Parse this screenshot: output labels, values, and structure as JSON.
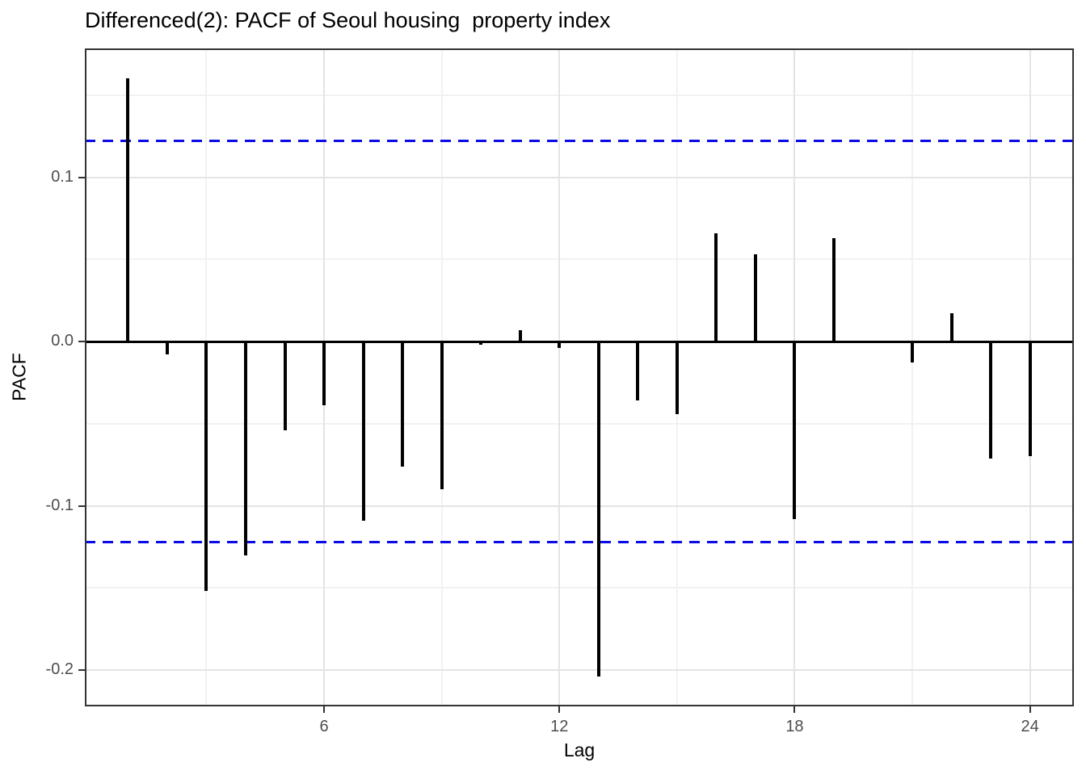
{
  "title": "Differenced(2): PACF of Seoul housing  property index",
  "chart_data": {
    "type": "bar",
    "subtype": "pacf-stick-plot",
    "title": "Differenced(2): PACF of Seoul housing  property index",
    "xlabel": "Lag",
    "ylabel": "PACF",
    "x": [
      1,
      2,
      3,
      4,
      5,
      6,
      7,
      8,
      9,
      10,
      11,
      12,
      13,
      14,
      15,
      16,
      17,
      18,
      19,
      20,
      21,
      22,
      23,
      24
    ],
    "values": [
      0.16,
      -0.008,
      -0.152,
      -0.13,
      -0.054,
      -0.039,
      -0.109,
      -0.076,
      -0.09,
      -0.002,
      0.007,
      -0.004,
      -0.204,
      -0.036,
      -0.044,
      0.066,
      0.053,
      -0.108,
      0.063,
      0.0,
      -0.013,
      0.017,
      -0.071,
      -0.07
    ],
    "confidence_bounds": {
      "upper": 0.122,
      "lower": -0.122,
      "line_style": "dashed",
      "color": "#0b0be8"
    },
    "x_ticks": [
      6,
      12,
      18,
      24
    ],
    "x_minor_ticks": [
      3,
      9,
      15,
      21
    ],
    "y_ticks": [
      0.1,
      0.0,
      -0.1,
      -0.2
    ],
    "y_tick_labels": [
      "0.1",
      "0.0",
      "-0.1",
      "-0.2"
    ],
    "y_minor_ticks": [
      0.15,
      0.05,
      -0.05,
      -0.15
    ],
    "xlim": [
      -0.1,
      25.12
    ],
    "ylim": [
      -0.2221,
      0.1784
    ],
    "grid": "on",
    "legend": "none",
    "bar_color": "#000000",
    "zero_line": true
  },
  "style_colors": {
    "background": "#ffffff",
    "bar": "#000000",
    "confidence_line": "#0b0be8",
    "grid_major": "#e4e4e4",
    "grid_minor": "#f2f2f2",
    "panel_border": "#333333",
    "tick_label": "#4d4d4d",
    "text": "#000000"
  }
}
